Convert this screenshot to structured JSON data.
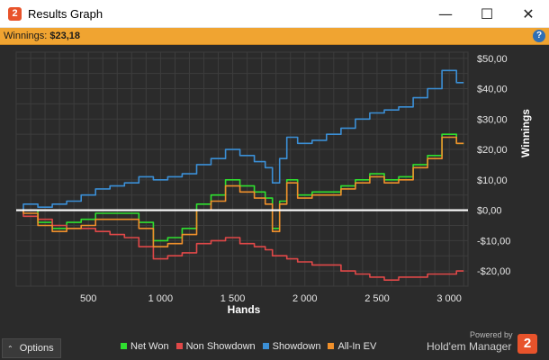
{
  "window": {
    "title": "Results Graph",
    "icon": "hm2-app-icon",
    "controls": {
      "minimize": "—",
      "maximize": "☐",
      "close": "✕"
    }
  },
  "summary": {
    "label": "Winnings:",
    "value": "$23,18",
    "help": "?"
  },
  "footer": {
    "options_label": "Options",
    "options_arrow": "⌃",
    "powered_by": "Powered by",
    "brand": "Hold'em Manager",
    "brand_logo": "2"
  },
  "colors": {
    "background": "#2b2b2b",
    "grid": "#3d3d3d",
    "zero_line": "#ffffff",
    "net_won": "#2fe02f",
    "non_showdown": "#e04848",
    "showdown": "#3b8fd6",
    "all_in_ev": "#f0902b",
    "summary_bar": "#f0a431"
  },
  "chart_data": {
    "type": "line",
    "xlabel": "Hands",
    "ylabel": "Winnings",
    "xlim": [
      0,
      3130
    ],
    "ylim": [
      -25,
      52
    ],
    "x_ticks": [
      500,
      1000,
      1500,
      2000,
      2500,
      3000
    ],
    "x_tick_labels": [
      "500",
      "1 000",
      "1 500",
      "2 000",
      "2 500",
      "3 000"
    ],
    "y_ticks": [
      50,
      40,
      30,
      20,
      10,
      0,
      -10,
      -20
    ],
    "y_tick_labels": [
      "$50,00",
      "$40,00",
      "$30,00",
      "$20,00",
      "$10,00",
      "$0,00",
      "-$10,00",
      "-$20,00"
    ],
    "grid": true,
    "legend_position": "bottom",
    "x": [
      0,
      100,
      200,
      300,
      400,
      500,
      600,
      700,
      800,
      900,
      1000,
      1100,
      1200,
      1300,
      1400,
      1500,
      1600,
      1700,
      1750,
      1800,
      1850,
      1900,
      2000,
      2100,
      2200,
      2300,
      2400,
      2500,
      2600,
      2700,
      2800,
      2900,
      3000,
      3100
    ],
    "series": [
      {
        "name": "Net Won",
        "color": "#2fe02f",
        "values": [
          0,
          0,
          -4,
          -6,
          -4,
          -3,
          -1,
          -1,
          -1,
          -4,
          -10,
          -9,
          -6,
          2,
          5,
          10,
          8,
          6,
          4,
          -6,
          3,
          10,
          5,
          6,
          6,
          8,
          10,
          12,
          10,
          11,
          15,
          18,
          25,
          22
        ]
      },
      {
        "name": "Non Showdown",
        "color": "#e04848",
        "values": [
          0,
          -2,
          -3,
          -5,
          -6,
          -6,
          -7,
          -8,
          -9,
          -12,
          -16,
          -15,
          -14,
          -11,
          -10,
          -9,
          -11,
          -12,
          -13,
          -15,
          -15,
          -16,
          -17,
          -18,
          -18,
          -20,
          -21,
          -22,
          -23,
          -22,
          -22,
          -21,
          -21,
          -20
        ]
      },
      {
        "name": "Showdown",
        "color": "#3b8fd6",
        "values": [
          0,
          2,
          1,
          2,
          3,
          5,
          7,
          8,
          9,
          11,
          10,
          11,
          12,
          15,
          17,
          20,
          18,
          16,
          14,
          9,
          17,
          24,
          22,
          23,
          25,
          27,
          30,
          32,
          33,
          34,
          37,
          40,
          46,
          42
        ]
      },
      {
        "name": "All-In EV",
        "color": "#f0902b",
        "values": [
          0,
          -1,
          -5,
          -7,
          -6,
          -5,
          -3,
          -3,
          -3,
          -6,
          -12,
          -11,
          -8,
          0,
          3,
          8,
          6,
          4,
          2,
          -7,
          2,
          9,
          4,
          5,
          5,
          7,
          9,
          11,
          9,
          10,
          14,
          17,
          24,
          22
        ]
      }
    ]
  }
}
